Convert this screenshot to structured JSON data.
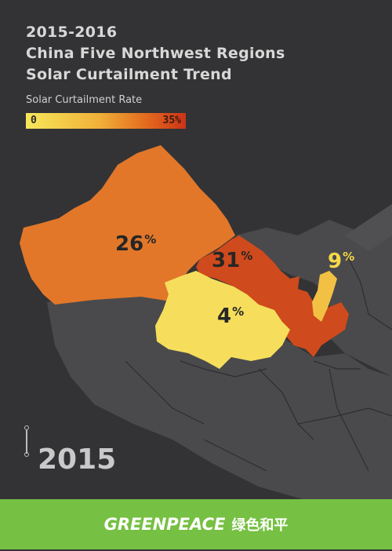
{
  "title": {
    "line1": "2015-2016",
    "line2": "China Five Northwest Regions",
    "line3": "Solar Curtailment Trend"
  },
  "legend": {
    "label": "Solar Curtailment Rate",
    "min": "0",
    "max": "35%",
    "colors": [
      "#f7e75a",
      "#f0b23a",
      "#e46b1e",
      "#cb3318"
    ]
  },
  "regions": [
    {
      "key": "xinjiang",
      "value": "26",
      "unit": "%",
      "color": "#e2772a"
    },
    {
      "key": "gansu",
      "value": "31",
      "unit": "%",
      "color": "#cf4a1c"
    },
    {
      "key": "qinghai",
      "value": "4",
      "unit": "%",
      "color": "#f6de5c"
    },
    {
      "key": "ningxia",
      "value": "9",
      "unit": "%",
      "color": "#f2c144"
    }
  ],
  "timeline": {
    "year": "2015"
  },
  "footer": {
    "brand": "GREENPEACE",
    "brand_zh": "绿色和平"
  }
}
